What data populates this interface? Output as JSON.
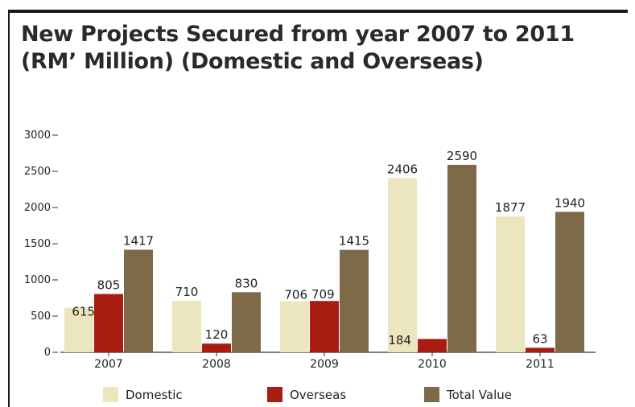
{
  "chart_data": {
    "type": "bar",
    "title_line1": "New Projects Secured from year 2007 to 2011",
    "title_line2": "(RM’ Million) (Domestic and Overseas)",
    "categories": [
      "2007",
      "2008",
      "2009",
      "2010",
      "2011"
    ],
    "series": [
      {
        "name": "Domestic",
        "color": "#ebe6bd",
        "values": [
          615,
          710,
          706,
          2406,
          1877
        ]
      },
      {
        "name": "Overseas",
        "color": "#a81c12",
        "values": [
          805,
          120,
          709,
          184,
          63
        ]
      },
      {
        "name": "Total Value",
        "color": "#7d6a48",
        "values": [
          1417,
          830,
          1415,
          2590,
          1940
        ]
      }
    ],
    "ylim": [
      0,
      3000
    ],
    "yticks": [
      0,
      500,
      1000,
      1500,
      2000,
      2500,
      3000
    ],
    "ytick_labels": [
      "0",
      "500",
      "1000",
      "1500",
      "2000",
      "2500",
      "3000"
    ],
    "data_labels": [
      [
        "615",
        "710",
        "706",
        "2406",
        "1877"
      ],
      [
        "805",
        "120",
        "709",
        "184",
        "63"
      ],
      [
        "1417",
        "830",
        "1415",
        "2590",
        "1940"
      ]
    ],
    "legend_position": "bottom",
    "grid": false
  }
}
